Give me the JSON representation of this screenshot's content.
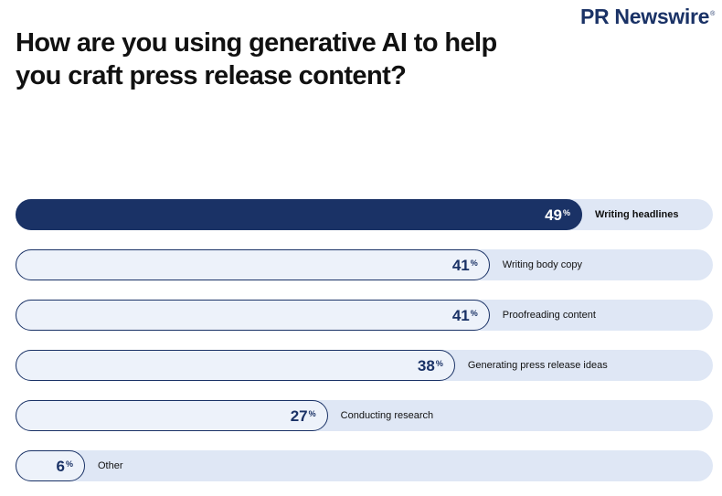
{
  "brand": {
    "logo_text": "PR Newswire",
    "logo_mark": "®"
  },
  "chart_data": {
    "type": "bar",
    "orientation": "horizontal",
    "title": "How are you using generative AI to help you craft press release content?",
    "unit": "%",
    "categories": [
      "Writing headlines",
      "Writing body copy",
      "Proofreading content",
      "Generating press release ideas",
      "Conducting research",
      "Other"
    ],
    "values": [
      49,
      41,
      41,
      38,
      27,
      6
    ],
    "highlight_index": 0,
    "xlim": [
      0,
      100
    ],
    "colors": {
      "highlight_bar": "#1a3266",
      "bar_outline": "#1a3266",
      "bar_fill": "#edf2fa",
      "track": "#dfe7f5"
    }
  }
}
